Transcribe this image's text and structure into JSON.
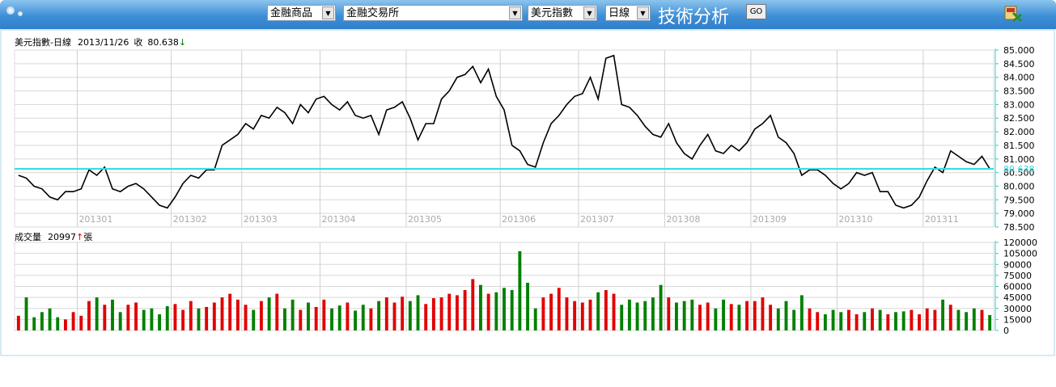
{
  "toolbar": {
    "product": "金融商品",
    "exchange": "金融交易所",
    "symbol": "美元指數",
    "period": "日線",
    "title": "技術分析",
    "button": "GO"
  },
  "chart_data": [
    {
      "type": "line",
      "title": "美元指數-日線",
      "date": "2013/11/26",
      "close_label": "收",
      "arrow": "↓",
      "arrow_color": "#008000",
      "color": "#000000",
      "reference_color": "#33dddd",
      "grid": true,
      "categories": [
        null,
        null,
        null,
        null,
        null,
        null,
        null,
        null,
        "201301",
        null,
        null,
        null,
        null,
        null,
        null,
        null,
        null,
        null,
        null,
        null,
        "201302",
        null,
        null,
        null,
        null,
        null,
        null,
        null,
        null,
        "201303",
        null,
        null,
        null,
        null,
        null,
        null,
        null,
        null,
        null,
        "201304",
        null,
        null,
        null,
        null,
        null,
        null,
        null,
        null,
        null,
        null,
        "201305",
        null,
        null,
        null,
        null,
        null,
        null,
        null,
        null,
        null,
        null,
        null,
        "201306",
        null,
        null,
        null,
        null,
        null,
        null,
        null,
        null,
        null,
        "201307",
        null,
        null,
        null,
        null,
        null,
        null,
        null,
        null,
        null,
        null,
        "201308",
        null,
        null,
        null,
        null,
        null,
        null,
        null,
        null,
        null,
        null,
        "201309",
        null,
        null,
        null,
        null,
        null,
        null,
        null,
        null,
        null,
        null,
        "201310",
        null,
        null,
        null,
        null,
        null,
        null,
        null,
        null,
        null,
        null,
        "201311",
        null,
        null,
        null,
        null,
        null,
        null,
        null,
        null
      ],
      "values": [
        80.4,
        80.3,
        80.0,
        79.9,
        79.6,
        79.5,
        79.8,
        79.8,
        79.9,
        80.6,
        80.4,
        80.7,
        79.9,
        79.8,
        80.0,
        80.1,
        79.9,
        79.6,
        79.3,
        79.2,
        79.6,
        80.1,
        80.4,
        80.3,
        80.6,
        80.6,
        81.5,
        81.7,
        81.9,
        82.3,
        82.1,
        82.6,
        82.5,
        82.9,
        82.7,
        82.3,
        83.0,
        82.7,
        83.2,
        83.3,
        83.0,
        82.8,
        83.1,
        82.6,
        82.5,
        82.6,
        81.9,
        82.8,
        82.9,
        83.1,
        82.5,
        81.7,
        82.3,
        82.3,
        83.2,
        83.5,
        84.0,
        84.1,
        84.4,
        83.8,
        84.3,
        83.3,
        82.8,
        81.5,
        81.3,
        80.8,
        80.7,
        81.6,
        82.3,
        82.6,
        83.0,
        83.3,
        83.4,
        84.0,
        83.2,
        84.7,
        84.8,
        83.0,
        82.9,
        82.6,
        82.2,
        81.9,
        81.8,
        82.3,
        81.6,
        81.2,
        81.0,
        81.5,
        81.9,
        81.3,
        81.2,
        81.5,
        81.3,
        81.6,
        82.1,
        82.3,
        82.6,
        81.8,
        81.6,
        81.2,
        80.4,
        80.6,
        80.6,
        80.4,
        80.1,
        79.9,
        80.1,
        80.5,
        80.4,
        80.5,
        79.8,
        79.8,
        79.3,
        79.2,
        79.3,
        79.6,
        80.2,
        80.7,
        80.5,
        81.3,
        81.1,
        80.9,
        80.8,
        81.1,
        80.638
      ],
      "ylim": [
        78.5,
        85
      ],
      "yticks": [
        {
          "value": 78.5,
          "label": "78.500"
        },
        {
          "value": 79,
          "label": "79.000"
        },
        {
          "value": 79.5,
          "label": "79.500"
        },
        {
          "value": 80,
          "label": "80.000"
        },
        {
          "value": 80.5,
          "label": "80.500"
        },
        {
          "value": 81,
          "label": "81.000"
        },
        {
          "value": 81.5,
          "label": "81.500"
        },
        {
          "value": 82,
          "label": "82.000"
        },
        {
          "value": 82.5,
          "label": "82.500"
        },
        {
          "value": 83,
          "label": "83.000"
        },
        {
          "value": 83.5,
          "label": "83.500"
        },
        {
          "value": 84,
          "label": "84.000"
        },
        {
          "value": 84.5,
          "label": "84.500"
        },
        {
          "value": 85,
          "label": "85.000"
        }
      ]
    },
    {
      "type": "bar",
      "title": "成交量",
      "arrow": "↑",
      "arrow_color": "#e00000",
      "unit": "張",
      "up_color": "#e00000",
      "down_color": "#008000",
      "grid": true,
      "values": [
        20000,
        45000,
        18000,
        25000,
        30000,
        18000,
        15000,
        25000,
        20000,
        40000,
        45000,
        35000,
        42000,
        25000,
        35000,
        38000,
        28000,
        30000,
        22000,
        33000,
        36000,
        28000,
        40000,
        30000,
        32000,
        38000,
        45000,
        50000,
        42000,
        35000,
        28000,
        40000,
        45000,
        50000,
        30000,
        42000,
        28000,
        38000,
        32000,
        42000,
        30000,
        34000,
        38000,
        27000,
        35000,
        30000,
        40000,
        45000,
        38000,
        46000,
        40000,
        48000,
        36000,
        44000,
        45000,
        50000,
        48000,
        55000,
        70000,
        62000,
        50000,
        52000,
        58000,
        55000,
        108000,
        65000,
        30000,
        45000,
        50000,
        58000,
        45000,
        40000,
        38000,
        42000,
        52000,
        55000,
        50000,
        35000,
        42000,
        38000,
        40000,
        45000,
        62000,
        45000,
        38000,
        40000,
        42000,
        35000,
        38000,
        30000,
        42000,
        36000,
        35000,
        40000,
        40000,
        45000,
        35000,
        30000,
        40000,
        28000,
        48000,
        30000,
        25000,
        22000,
        28000,
        25000,
        28000,
        22000,
        25000,
        30000,
        28000,
        22000,
        25000,
        26000,
        28000,
        22000,
        30000,
        28000,
        42000,
        35000,
        28000,
        25000,
        30000,
        28000,
        20997
      ],
      "ylim": [
        0,
        120000
      ],
      "yticks": [
        0,
        15000,
        30000,
        45000,
        60000,
        75000,
        90000,
        105000,
        120000
      ]
    }
  ]
}
